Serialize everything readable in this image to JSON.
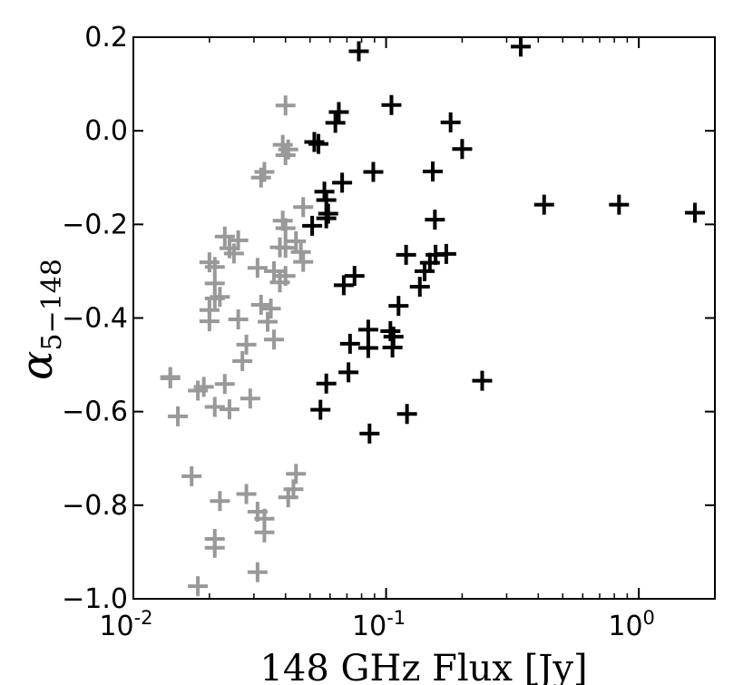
{
  "chart_data": {
    "type": "scatter",
    "title": "",
    "xlabel": "148 GHz Flux [Jy]",
    "ylabel": "α",
    "ylabel_subscript": "5−148",
    "xscale": "log",
    "xlim": [
      0.01,
      2.0
    ],
    "ylim": [
      -1.0,
      0.2
    ],
    "grid": false,
    "legend": "none",
    "x_ticks": [
      {
        "value": 0.01,
        "base": "10",
        "exp": "-2"
      },
      {
        "value": 0.1,
        "base": "10",
        "exp": "-1"
      },
      {
        "value": 1.0,
        "base": "10",
        "exp": "0"
      }
    ],
    "y_ticks": [
      {
        "value": 0.2,
        "label": "0.2"
      },
      {
        "value": 0.0,
        "label": "0.0"
      },
      {
        "value": -0.2,
        "label": "−0.2"
      },
      {
        "value": -0.4,
        "label": "−0.4"
      },
      {
        "value": -0.6,
        "label": "−0.6"
      },
      {
        "value": -0.8,
        "label": "−0.8"
      },
      {
        "value": -1.0,
        "label": "−1.0"
      }
    ],
    "series": [
      {
        "color": "#999999",
        "marker": "plus",
        "points": [
          [
            0.04,
            0.054
          ],
          [
            0.033,
            -0.088
          ],
          [
            0.032,
            -0.1
          ],
          [
            0.039,
            -0.03
          ],
          [
            0.041,
            -0.04
          ],
          [
            0.04,
            -0.052
          ],
          [
            0.047,
            -0.163
          ],
          [
            0.044,
            -0.236
          ],
          [
            0.039,
            -0.192
          ],
          [
            0.04,
            -0.208
          ],
          [
            0.038,
            -0.249
          ],
          [
            0.04,
            -0.25
          ],
          [
            0.046,
            -0.259
          ],
          [
            0.047,
            -0.28
          ],
          [
            0.023,
            -0.226
          ],
          [
            0.026,
            -0.234
          ],
          [
            0.024,
            -0.251
          ],
          [
            0.025,
            -0.262
          ],
          [
            0.02,
            -0.281
          ],
          [
            0.021,
            -0.291
          ],
          [
            0.031,
            -0.293
          ],
          [
            0.036,
            -0.3
          ],
          [
            0.04,
            -0.31
          ],
          [
            0.038,
            -0.324
          ],
          [
            0.021,
            -0.326
          ],
          [
            0.022,
            -0.355
          ],
          [
            0.021,
            -0.358
          ],
          [
            0.02,
            -0.383
          ],
          [
            0.02,
            -0.407
          ],
          [
            0.026,
            -0.403
          ],
          [
            0.032,
            -0.372
          ],
          [
            0.035,
            -0.38
          ],
          [
            0.034,
            -0.408
          ],
          [
            0.036,
            -0.446
          ],
          [
            0.028,
            -0.457
          ],
          [
            0.027,
            -0.492
          ],
          [
            0.014,
            -0.526
          ],
          [
            0.014,
            -0.529
          ],
          [
            0.019,
            -0.547
          ],
          [
            0.018,
            -0.555
          ],
          [
            0.023,
            -0.541
          ],
          [
            0.024,
            -0.595
          ],
          [
            0.021,
            -0.59
          ],
          [
            0.029,
            -0.572
          ],
          [
            0.015,
            -0.61
          ],
          [
            0.017,
            -0.738
          ],
          [
            0.022,
            -0.791
          ],
          [
            0.028,
            -0.776
          ],
          [
            0.031,
            -0.814
          ],
          [
            0.033,
            -0.829
          ],
          [
            0.033,
            -0.858
          ],
          [
            0.044,
            -0.733
          ],
          [
            0.043,
            -0.766
          ],
          [
            0.041,
            -0.783
          ],
          [
            0.021,
            -0.872
          ],
          [
            0.021,
            -0.891
          ],
          [
            0.031,
            -0.943
          ],
          [
            0.018,
            -0.973
          ]
        ]
      },
      {
        "color": "#000000",
        "marker": "plus",
        "points": [
          [
            0.078,
            0.17
          ],
          [
            0.341,
            0.18
          ],
          [
            0.065,
            0.04
          ],
          [
            0.063,
            0.017
          ],
          [
            0.105,
            0.055
          ],
          [
            0.052,
            -0.024
          ],
          [
            0.054,
            -0.028
          ],
          [
            0.18,
            0.018
          ],
          [
            0.2,
            -0.039
          ],
          [
            0.089,
            -0.088
          ],
          [
            0.153,
            -0.087
          ],
          [
            0.067,
            -0.111
          ],
          [
            0.057,
            -0.13
          ],
          [
            0.058,
            -0.148
          ],
          [
            0.059,
            -0.177
          ],
          [
            0.058,
            -0.187
          ],
          [
            0.051,
            -0.203
          ],
          [
            0.422,
            -0.158
          ],
          [
            0.835,
            -0.158
          ],
          [
            1.667,
            -0.175
          ],
          [
            0.156,
            -0.19
          ],
          [
            0.12,
            -0.265
          ],
          [
            0.157,
            -0.265
          ],
          [
            0.173,
            -0.263
          ],
          [
            0.149,
            -0.282
          ],
          [
            0.142,
            -0.3
          ],
          [
            0.075,
            -0.31
          ],
          [
            0.068,
            -0.33
          ],
          [
            0.136,
            -0.333
          ],
          [
            0.112,
            -0.374
          ],
          [
            0.085,
            -0.425
          ],
          [
            0.104,
            -0.428
          ],
          [
            0.107,
            -0.44
          ],
          [
            0.072,
            -0.455
          ],
          [
            0.085,
            -0.464
          ],
          [
            0.106,
            -0.463
          ],
          [
            0.071,
            -0.516
          ],
          [
            0.058,
            -0.54
          ],
          [
            0.24,
            -0.534
          ],
          [
            0.055,
            -0.596
          ],
          [
            0.121,
            -0.605
          ],
          [
            0.086,
            -0.647
          ]
        ]
      }
    ]
  }
}
